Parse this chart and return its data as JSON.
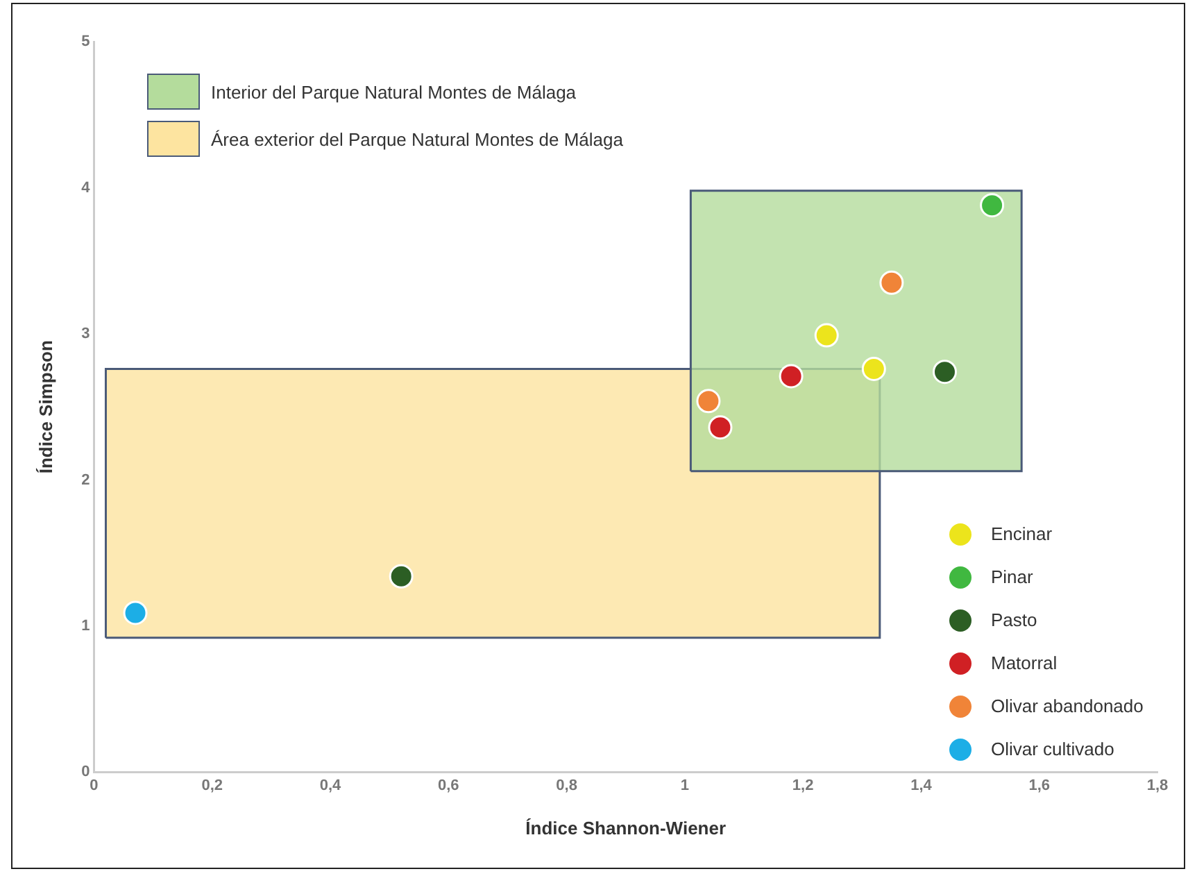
{
  "chart_data": {
    "type": "scatter",
    "xlabel": "Índice Shannon-Wiener",
    "ylabel": "Índice Simpson",
    "xlim": [
      0,
      1.8
    ],
    "xticks": [
      0,
      {
        "value": 0.2,
        "label": "0,2"
      },
      {
        "value": 0.4,
        "label": "0,4"
      },
      {
        "value": 0.6,
        "label": "0,6"
      },
      {
        "value": 0.8,
        "label": "0,8"
      },
      {
        "value": 1,
        "label": "1"
      },
      {
        "value": 1.2,
        "label": "1,2"
      },
      {
        "value": 1.4,
        "label": "1,4"
      },
      {
        "value": 1.6,
        "label": "1,6"
      },
      {
        "value": 1.8,
        "label": "1,8"
      }
    ],
    "ylim": [
      0,
      5
    ],
    "yticks": [
      0,
      1,
      2,
      3,
      4,
      5
    ],
    "grid": false,
    "legend": "right",
    "marker": "circle",
    "series": [
      {
        "name": "Interior del Parque Natural Montes de Málaga",
        "type": "area",
        "marker": "none",
        "color": "#b4dc9c",
        "x": [
          1.01,
          1.57,
          1.57,
          1.01,
          1.01
        ],
        "values": [
          2.06,
          2.06,
          3.98,
          3.98,
          2.06
        ]
      },
      {
        "name": "Área exterior del Parque Natural Montes de Málaga",
        "type": "area",
        "marker": "none",
        "color": "#fde4a0",
        "x": [
          0.02,
          1.33,
          1.33,
          0.02,
          0.02
        ],
        "values": [
          0.92,
          0.92,
          2.76,
          2.76,
          0.92
        ]
      },
      {
        "name": "Encinar",
        "color": "#ece41c",
        "x": [
          1.24,
          1.32
        ],
        "values": [
          2.99,
          2.76
        ]
      },
      {
        "name": "Pinar",
        "color": "#40b840",
        "x": [
          1.52
        ],
        "values": [
          3.88
        ]
      },
      {
        "name": "Pasto",
        "color": "#2c5e24",
        "x": [
          1.44,
          0.52
        ],
        "values": [
          2.74,
          1.34
        ]
      },
      {
        "name": "Matorral",
        "color": "#d02024",
        "x": [
          1.18,
          1.06
        ],
        "values": [
          2.71,
          2.36
        ]
      },
      {
        "name": "Olivar abandonado",
        "color": "#f08438",
        "x": [
          1.35,
          1.04
        ],
        "values": [
          3.35,
          2.54
        ]
      },
      {
        "name": "Olivar cultivado",
        "color": "#1caee6",
        "x": [
          0.07
        ],
        "values": [
          1.09
        ]
      }
    ]
  }
}
